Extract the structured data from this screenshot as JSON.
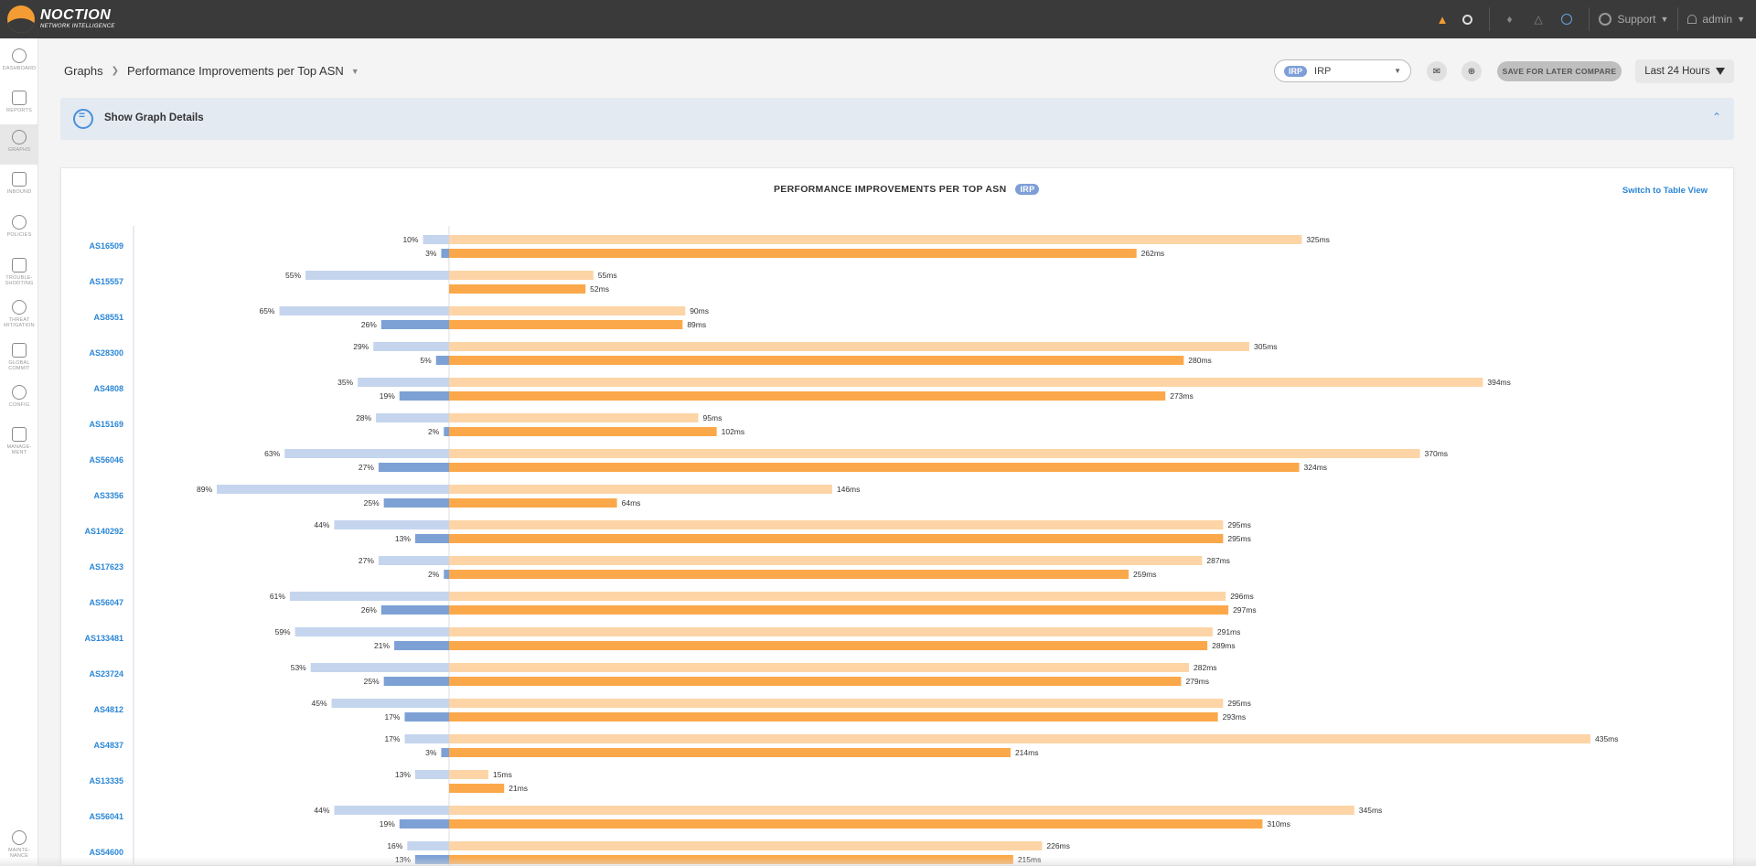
{
  "header": {
    "logo_name": "NOCTION",
    "logo_sub": "NETWORK INTELLIGENCE",
    "support_label": "Support",
    "user_label": "admin"
  },
  "sidebar": {
    "items": [
      {
        "label": "DASHBOARD",
        "icon": "dashboard-icon"
      },
      {
        "label": "REPORTS",
        "icon": "reports-icon"
      },
      {
        "label": "GRAPHS",
        "icon": "graphs-icon",
        "active": true
      },
      {
        "label": "INBOUND",
        "icon": "inbound-icon"
      },
      {
        "label": "POLICIES",
        "icon": "policies-icon"
      },
      {
        "label": "TROUBLE-\nSHOOTING",
        "icon": "troubleshooting-icon"
      },
      {
        "label": "THREAT\nMITIGATION",
        "icon": "threat-mitigation-icon"
      },
      {
        "label": "GLOBAL\nCOMMIT",
        "icon": "global-commit-icon"
      },
      {
        "label": "CONFIG",
        "icon": "config-icon"
      },
      {
        "label": "MANAGE-\nMENT",
        "icon": "management-icon"
      },
      {
        "label": "MAINTE-\nNANCE",
        "icon": "maintenance-icon"
      }
    ]
  },
  "breadcrumb": {
    "root": "Graphs",
    "current": "Performance Improvements per Top ASN"
  },
  "toolbar": {
    "select_badge": "IRP",
    "select_value": "IRP",
    "save_label": "SAVE FOR LATER COMPARE",
    "time_label": "Last 24 Hours"
  },
  "details": {
    "label": "Show Graph Details"
  },
  "panel": {
    "title": "PERFORMANCE IMPROVEMENTS PER TOP ASN",
    "badge": "IRP",
    "switch_label": "Switch to Table View"
  },
  "colors": {
    "pct_light": "#c5d5ee",
    "pct_dark": "#7da1d5",
    "ms_light": "#fdd4a6",
    "ms_dark": "#fba84a",
    "link": "#2a86d6"
  },
  "chart_data": {
    "type": "bar",
    "orientation": "horizontal",
    "categories": [
      "AS16509",
      "AS15557",
      "AS8551",
      "AS28300",
      "AS4808",
      "AS15169",
      "AS56046",
      "AS3356",
      "AS140292",
      "AS17623",
      "AS56047",
      "AS133481",
      "AS23724",
      "AS4812",
      "AS4837",
      "AS13335",
      "AS56041",
      "AS54600"
    ],
    "series": [
      {
        "values": [
          10,
          55,
          65,
          29,
          35,
          28,
          63,
          89,
          44,
          27,
          61,
          59,
          53,
          45,
          17,
          13,
          44,
          16
        ],
        "unit": "%"
      },
      {
        "values": [
          3,
          null,
          26,
          5,
          19,
          2,
          27,
          25,
          13,
          2,
          26,
          21,
          25,
          17,
          3,
          null,
          19,
          13
        ],
        "unit": "%"
      },
      {
        "values": [
          325,
          55,
          90,
          305,
          394,
          95,
          370,
          146,
          295,
          287,
          296,
          291,
          282,
          295,
          435,
          15,
          345,
          226
        ],
        "unit": "ms"
      },
      {
        "values": [
          262,
          52,
          89,
          280,
          273,
          102,
          324,
          64,
          295,
          259,
          297,
          289,
          279,
          293,
          214,
          21,
          310,
          215
        ],
        "unit": "ms"
      }
    ],
    "pct_scale_max": 100,
    "ms_scale_max": 440
  }
}
